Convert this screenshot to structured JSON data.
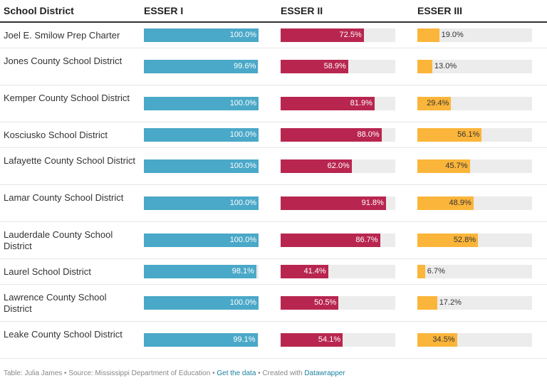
{
  "chart_data": {
    "type": "table",
    "columns": [
      "School District",
      "ESSER I",
      "ESSER II",
      "ESSER III"
    ],
    "colors": {
      "ESSER I": "#4aa8c8",
      "ESSER II": "#b8264f",
      "ESSER III": "#fbb53a",
      "track": "#ececec"
    },
    "xlim": [
      0,
      100
    ],
    "rows": [
      {
        "district": "Joel E. Smilow Prep Charter",
        "values": [
          100.0,
          72.5,
          19.0
        ],
        "labels": [
          "100.0%",
          "72.5%",
          "19.0%"
        ]
      },
      {
        "district": "Jones County School District",
        "values": [
          99.6,
          58.9,
          13.0
        ],
        "labels": [
          "99.6%",
          "58.9%",
          "13.0%"
        ]
      },
      {
        "district": "Kemper County School District",
        "values": [
          100.0,
          81.9,
          29.4
        ],
        "labels": [
          "100.0%",
          "81.9%",
          "29.4%"
        ]
      },
      {
        "district": "Kosciusko School District",
        "values": [
          100.0,
          88.0,
          56.1
        ],
        "labels": [
          "100.0%",
          "88.0%",
          "56.1%"
        ]
      },
      {
        "district": "Lafayette County School District",
        "values": [
          100.0,
          62.0,
          45.7
        ],
        "labels": [
          "100.0%",
          "62.0%",
          "45.7%"
        ]
      },
      {
        "district": "Lamar County School District",
        "values": [
          100.0,
          91.8,
          48.9
        ],
        "labels": [
          "100.0%",
          "91.8%",
          "48.9%"
        ]
      },
      {
        "district": "Lauderdale County School District",
        "values": [
          100.0,
          86.7,
          52.8
        ],
        "labels": [
          "100.0%",
          "86.7%",
          "52.8%"
        ]
      },
      {
        "district": "Laurel School District",
        "values": [
          98.1,
          41.4,
          6.7
        ],
        "labels": [
          "98.1%",
          "41.4%",
          "6.7%"
        ]
      },
      {
        "district": "Lawrence County School District",
        "values": [
          100.0,
          50.5,
          17.2
        ],
        "labels": [
          "100.0%",
          "50.5%",
          "17.2%"
        ]
      },
      {
        "district": "Leake County School District",
        "values": [
          99.1,
          54.1,
          34.5
        ],
        "labels": [
          "99.1%",
          "54.1%",
          "34.5%"
        ]
      }
    ]
  },
  "footer": {
    "credit": "Table: Julia James • Source: Mississippi Department of Education  • ",
    "get_data": "Get the data",
    "created": " • Created with ",
    "datawrapper": "Datawrapper"
  }
}
